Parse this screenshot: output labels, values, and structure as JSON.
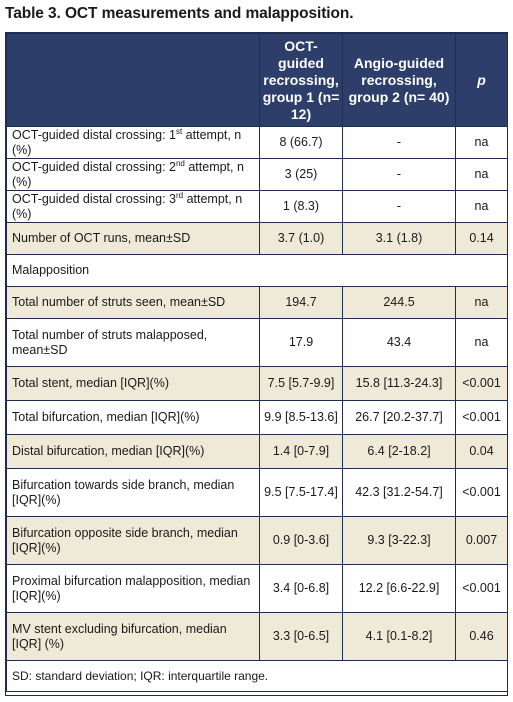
{
  "title": "Table 3. OCT measurements and malapposition.",
  "headers": [
    "",
    "OCT-guided recrossing, group 1 (n= 12)",
    "Angio-guided recrossing, group 2 (n= 40)",
    "p"
  ],
  "rows": [
    {
      "label": "OCT-guided distal crossing: 1",
      "sup": "st",
      "label_after": " attempt, n (%)",
      "g1": "8 (66.7)",
      "g2": "-",
      "p": "na"
    },
    {
      "label": "OCT-guided distal crossing: 2",
      "sup": "nd",
      "label_after": " attempt, n (%)",
      "g1": "3 (25)",
      "g2": "-",
      "p": "na"
    },
    {
      "label": "OCT-guided distal crossing: 3",
      "sup": "rd",
      "label_after": " attempt, n (%)",
      "g1": "1 (8.3)",
      "g2": "-",
      "p": "na"
    },
    {
      "label": "Number of OCT runs, mean±SD",
      "g1": "3.7 (1.0)",
      "g2": "3.1 (1.8)",
      "p": "0.14"
    },
    {
      "label": "Malapposition",
      "g1": "",
      "g2": "",
      "p": ""
    },
    {
      "label": "Total number of struts seen, mean±SD",
      "g1": "194.7",
      "g2": "244.5",
      "p": "na"
    },
    {
      "label": "Total number of struts malapposed, mean±SD",
      "g1": "17.9",
      "g2": "43.4",
      "p": "na"
    },
    {
      "label": "Total stent, median [IQR](%)",
      "g1": "7.5 [5.7-9.9]",
      "g2": "15.8 [11.3-24.3]",
      "p": "<0.001"
    },
    {
      "label": "Total bifurcation, median [IQR](%)",
      "g1": "9.9 [8.5-13.6]",
      "g2": "26.7 [20.2-37.7]",
      "p": "<0.001"
    },
    {
      "label": "Distal bifurcation, median [IQR](%)",
      "g1": "1.4 [0-7.9]",
      "g2": "6.4 [2-18.2]",
      "p": "0.04"
    },
    {
      "label": "Bifurcation towards side branch, median [IQR](%)",
      "g1": "9.5 [7.5-17.4]",
      "g2": "42.3 [31.2-54.7]",
      "p": "<0.001"
    },
    {
      "label": "Bifurcation opposite side branch, median [IQR](%)",
      "g1": "0.9 [0-3.6]",
      "g2": "9.3 [3-22.3]",
      "p": "0.007"
    },
    {
      "label": "Proximal bifurcation malapposition, median [IQR](%)",
      "g1": "3.4 [0-6.8]",
      "g2": "12.2 [6.6-22.9]",
      "p": "<0.001"
    },
    {
      "label": "MV stent excluding bifurcation, median [IQR] (%)",
      "g1": "3.3 [0-6.5]",
      "g2": "4.1 [0.1-8.2]",
      "p": "0.46"
    }
  ],
  "footnote": "SD: standard deviation; IQR: interquartile range."
}
